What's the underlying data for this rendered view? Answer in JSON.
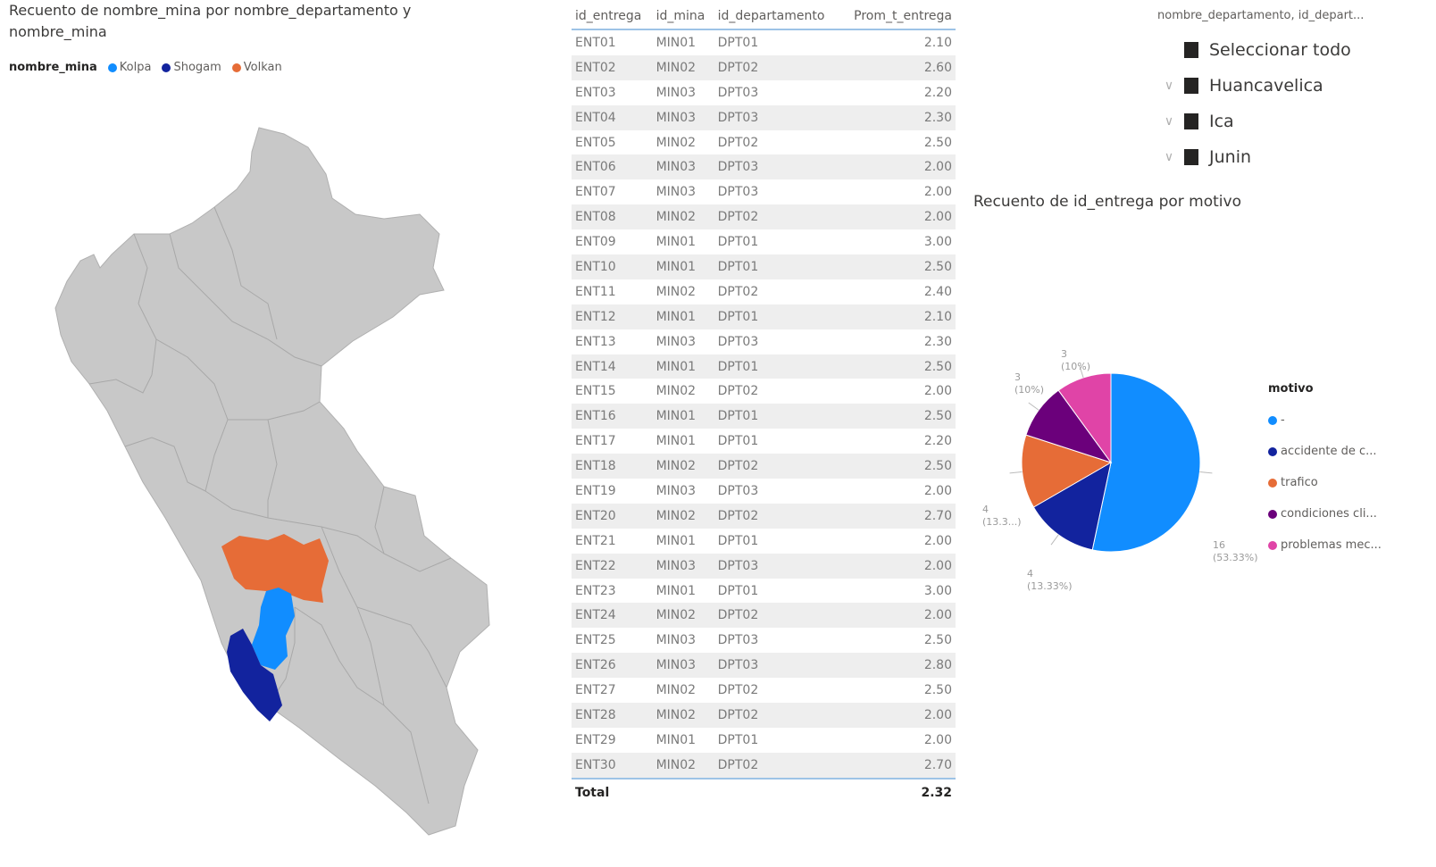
{
  "map": {
    "title": "Recuento de nombre_mina por nombre_departamento y nombre_mina",
    "legend_title": "nombre_mina",
    "legend": [
      {
        "label": "Kolpa",
        "color": "#118dff"
      },
      {
        "label": "Shogam",
        "color": "#12239e"
      },
      {
        "label": "Volkan",
        "color": "#e66c37"
      }
    ],
    "base_color": "#c8c8c8"
  },
  "table": {
    "headers": [
      "id_entrega",
      "id_mina",
      "id_departamento",
      "Prom_t_entrega"
    ],
    "rows": [
      [
        "ENT01",
        "MIN01",
        "DPT01",
        "2.10"
      ],
      [
        "ENT02",
        "MIN02",
        "DPT02",
        "2.60"
      ],
      [
        "ENT03",
        "MIN03",
        "DPT03",
        "2.20"
      ],
      [
        "ENT04",
        "MIN03",
        "DPT03",
        "2.30"
      ],
      [
        "ENT05",
        "MIN02",
        "DPT02",
        "2.50"
      ],
      [
        "ENT06",
        "MIN03",
        "DPT03",
        "2.00"
      ],
      [
        "ENT07",
        "MIN03",
        "DPT03",
        "2.00"
      ],
      [
        "ENT08",
        "MIN02",
        "DPT02",
        "2.00"
      ],
      [
        "ENT09",
        "MIN01",
        "DPT01",
        "3.00"
      ],
      [
        "ENT10",
        "MIN01",
        "DPT01",
        "2.50"
      ],
      [
        "ENT11",
        "MIN02",
        "DPT02",
        "2.40"
      ],
      [
        "ENT12",
        "MIN01",
        "DPT01",
        "2.10"
      ],
      [
        "ENT13",
        "MIN03",
        "DPT03",
        "2.30"
      ],
      [
        "ENT14",
        "MIN01",
        "DPT01",
        "2.50"
      ],
      [
        "ENT15",
        "MIN02",
        "DPT02",
        "2.00"
      ],
      [
        "ENT16",
        "MIN01",
        "DPT01",
        "2.50"
      ],
      [
        "ENT17",
        "MIN01",
        "DPT01",
        "2.20"
      ],
      [
        "ENT18",
        "MIN02",
        "DPT02",
        "2.50"
      ],
      [
        "ENT19",
        "MIN03",
        "DPT03",
        "2.00"
      ],
      [
        "ENT20",
        "MIN02",
        "DPT02",
        "2.70"
      ],
      [
        "ENT21",
        "MIN01",
        "DPT01",
        "2.00"
      ],
      [
        "ENT22",
        "MIN03",
        "DPT03",
        "2.00"
      ],
      [
        "ENT23",
        "MIN01",
        "DPT01",
        "3.00"
      ],
      [
        "ENT24",
        "MIN02",
        "DPT02",
        "2.00"
      ],
      [
        "ENT25",
        "MIN03",
        "DPT03",
        "2.50"
      ],
      [
        "ENT26",
        "MIN03",
        "DPT03",
        "2.80"
      ],
      [
        "ENT27",
        "MIN02",
        "DPT02",
        "2.50"
      ],
      [
        "ENT28",
        "MIN02",
        "DPT02",
        "2.00"
      ],
      [
        "ENT29",
        "MIN01",
        "DPT01",
        "2.00"
      ],
      [
        "ENT30",
        "MIN02",
        "DPT02",
        "2.70"
      ]
    ],
    "total_label": "Total",
    "total_value": "2.32"
  },
  "slicer": {
    "header": "nombre_departamento, id_depart...",
    "items": [
      {
        "label": "Seleccionar todo",
        "expandable": false
      },
      {
        "label": "Huancavelica",
        "expandable": true
      },
      {
        "label": "Ica",
        "expandable": true
      },
      {
        "label": "Junin",
        "expandable": true
      }
    ]
  },
  "chart_data": {
    "type": "pie",
    "title": "Recuento de id_entrega por motivo",
    "legend_title": "motivo",
    "legend_position": "right",
    "slices": [
      {
        "label": "-",
        "value": 16,
        "percent_label": "(53.33%)",
        "color": "#118dff"
      },
      {
        "label": "accidente de c...",
        "value": 4,
        "percent_label": "(13.33%)",
        "color": "#12239e"
      },
      {
        "label": "trafico",
        "value": 4,
        "percent_label": "(13.3...)",
        "color": "#e66c37"
      },
      {
        "label": "condiciones cli...",
        "value": 3,
        "percent_label": "(10%)",
        "color": "#6b007b"
      },
      {
        "label": "problemas mec...",
        "value": 3,
        "percent_label": "(10%)",
        "color": "#e044a7"
      }
    ]
  }
}
